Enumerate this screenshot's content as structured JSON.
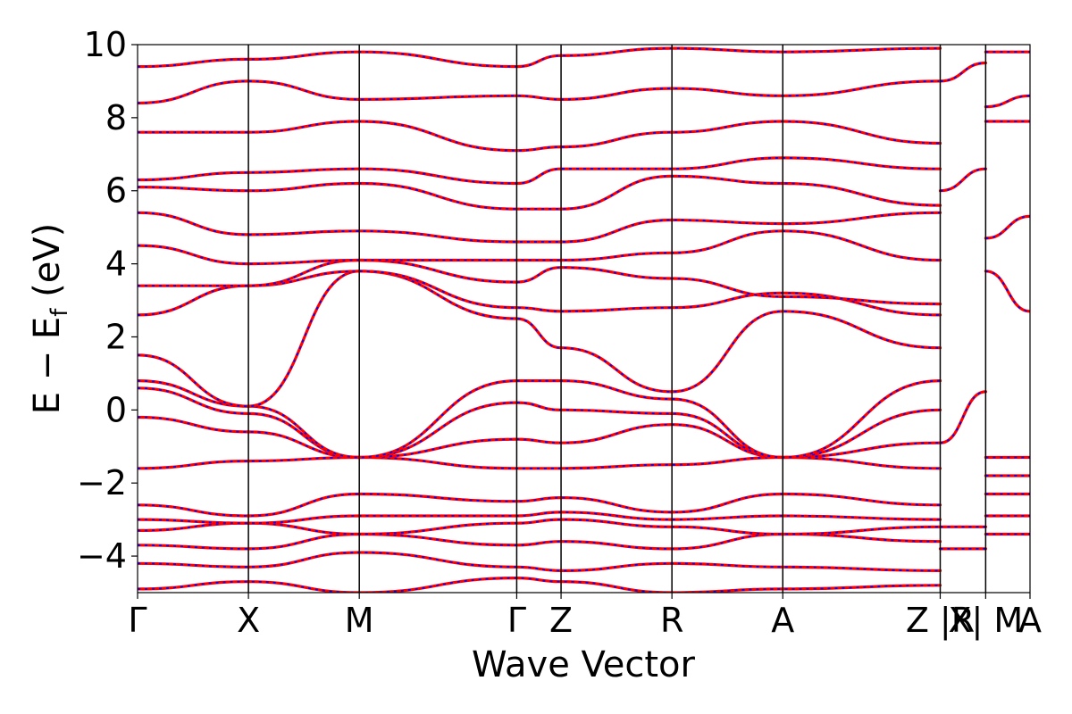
{
  "chart_data": {
    "type": "line",
    "title": "",
    "xlabel": "Wave Vector",
    "ylabel": "E − E",
    "ylabel_sub": "f",
    "ylabel_unit": " (eV)",
    "ylim": [
      -5,
      10
    ],
    "yticks": [
      {
        "value": -4,
        "label": "−4"
      },
      {
        "value": -2,
        "label": "−2"
      },
      {
        "value": 0,
        "label": "0"
      },
      {
        "value": 2,
        "label": "2"
      },
      {
        "value": 4,
        "label": "4"
      },
      {
        "value": 6,
        "label": "6"
      },
      {
        "value": 8,
        "label": "8"
      },
      {
        "value": 10,
        "label": "10"
      }
    ],
    "xlim": [
      0,
      8.05
    ],
    "kpoints": [
      {
        "label": "Γ",
        "x": 0.0
      },
      {
        "label": "X",
        "x": 1.0
      },
      {
        "label": "M",
        "x": 2.0
      },
      {
        "label": "Γ",
        "x": 3.42
      },
      {
        "label": "Z",
        "x": 3.82
      },
      {
        "label": "R",
        "x": 4.82
      },
      {
        "label": "A",
        "x": 5.82
      },
      {
        "label": "Z |R",
        "x": 7.24
      },
      {
        "label": "X| M",
        "x": 7.65
      },
      {
        "label": "A",
        "x": 8.05
      }
    ],
    "grid": false,
    "legend": "none",
    "series_colors": {
      "primary": "#ff0000",
      "secondary": "#0000ff"
    },
    "bands": [
      {
        "x": [
          0,
          1,
          2,
          3.42,
          3.82,
          4.82,
          5.82,
          7.24
        ],
        "y": [
          -4.9,
          -4.7,
          -5.0,
          -4.6,
          -4.7,
          -5.0,
          -4.9,
          -4.8
        ]
      },
      {
        "x": [
          0,
          1,
          2,
          3.42,
          3.82,
          4.82,
          5.82,
          7.24
        ],
        "y": [
          -4.2,
          -4.3,
          -3.9,
          -4.3,
          -4.4,
          -4.2,
          -4.3,
          -4.4
        ]
      },
      {
        "x": [
          0,
          1,
          2,
          3.42,
          3.82,
          4.82,
          5.82,
          7.24
        ],
        "y": [
          -3.7,
          -3.8,
          -3.4,
          -3.7,
          -3.6,
          -3.8,
          -3.4,
          -3.6
        ]
      },
      {
        "x": [
          0,
          1,
          2,
          3.42,
          3.82,
          4.82,
          5.82,
          7.24
        ],
        "y": [
          -3.3,
          -3.1,
          -3.4,
          -3.1,
          -3.0,
          -3.2,
          -3.4,
          -3.2
        ]
      },
      {
        "x": [
          0,
          1,
          2,
          3.42,
          3.82,
          4.82,
          5.82,
          7.24
        ],
        "y": [
          -3.0,
          -3.1,
          -2.9,
          -2.9,
          -2.8,
          -3.0,
          -2.9,
          -3.0
        ]
      },
      {
        "x": [
          0,
          1,
          2,
          3.42,
          3.82,
          4.82,
          5.82,
          7.24
        ],
        "y": [
          -2.6,
          -2.9,
          -2.3,
          -2.5,
          -2.4,
          -2.8,
          -2.3,
          -2.6
        ]
      },
      {
        "x": [
          0,
          1,
          2,
          3.42,
          3.82,
          4.82,
          5.82,
          7.24
        ],
        "y": [
          -1.6,
          -1.4,
          -1.3,
          -1.6,
          -1.6,
          -1.5,
          -1.3,
          -1.6
        ]
      },
      {
        "x": [
          0,
          1,
          2,
          3.42,
          3.82,
          4.82,
          5.82,
          7.24
        ],
        "y": [
          -0.2,
          -0.6,
          -1.3,
          -0.8,
          -0.9,
          -0.4,
          -1.3,
          -0.9
        ]
      },
      {
        "x": [
          0,
          1,
          2,
          3.42,
          3.82,
          4.82,
          5.82,
          7.24
        ],
        "y": [
          0.6,
          -0.1,
          -1.3,
          0.2,
          0.0,
          -0.1,
          -1.3,
          0.0
        ]
      },
      {
        "x": [
          0,
          1,
          2,
          3.42,
          3.82,
          4.82,
          5.82,
          7.24
        ],
        "y": [
          0.8,
          0.1,
          -1.3,
          0.8,
          0.8,
          0.3,
          -1.3,
          0.8
        ]
      },
      {
        "x": [
          0,
          1,
          2,
          3.42,
          3.82,
          4.82,
          5.82,
          7.24
        ],
        "y": [
          1.5,
          0.1,
          3.8,
          2.5,
          1.7,
          0.5,
          2.7,
          1.7
        ]
      },
      {
        "x": [
          0,
          1,
          2,
          3.42,
          3.82,
          4.82,
          5.82,
          7.24
        ],
        "y": [
          2.6,
          3.4,
          3.8,
          2.8,
          2.7,
          2.8,
          3.2,
          2.6
        ]
      },
      {
        "x": [
          0,
          1,
          2,
          3.42,
          3.82,
          4.82,
          5.82,
          7.24
        ],
        "y": [
          3.4,
          3.4,
          4.1,
          3.5,
          3.9,
          3.6,
          3.1,
          2.9
        ]
      },
      {
        "x": [
          0,
          1,
          2,
          3.42,
          3.82,
          4.82,
          5.82,
          7.24
        ],
        "y": [
          4.5,
          4.0,
          4.1,
          4.1,
          4.1,
          4.3,
          4.9,
          4.1
        ]
      },
      {
        "x": [
          0,
          1,
          2,
          3.42,
          3.82,
          4.82,
          5.82,
          7.24
        ],
        "y": [
          5.4,
          4.8,
          4.9,
          4.6,
          4.6,
          5.2,
          5.1,
          5.4
        ]
      },
      {
        "x": [
          0,
          1,
          2,
          3.42,
          3.82,
          4.82,
          5.82,
          7.24
        ],
        "y": [
          6.1,
          6.0,
          6.2,
          5.5,
          5.5,
          6.4,
          6.2,
          5.6
        ]
      },
      {
        "x": [
          0,
          1,
          2,
          3.42,
          3.82,
          4.82,
          5.82,
          7.24
        ],
        "y": [
          6.3,
          6.5,
          6.6,
          6.2,
          6.6,
          6.6,
          6.9,
          6.6
        ]
      },
      {
        "x": [
          0,
          1,
          2,
          3.42,
          3.82,
          4.82,
          5.82,
          7.24
        ],
        "y": [
          7.6,
          7.6,
          7.9,
          7.1,
          7.2,
          7.6,
          7.9,
          7.3
        ]
      },
      {
        "x": [
          0,
          1,
          2,
          3.42,
          3.82,
          4.82,
          5.82,
          7.24
        ],
        "y": [
          8.4,
          9.0,
          8.5,
          8.6,
          8.5,
          8.8,
          8.6,
          9.0
        ]
      },
      {
        "x": [
          0,
          1,
          2,
          3.42,
          3.82,
          4.82,
          5.82,
          7.24
        ],
        "y": [
          9.4,
          9.6,
          9.8,
          9.4,
          9.7,
          9.9,
          9.8,
          9.9
        ]
      },
      {
        "x": [
          7.24,
          7.65
        ],
        "y": [
          -3.2,
          -3.2
        ]
      },
      {
        "x": [
          7.24,
          7.65
        ],
        "y": [
          -3.8,
          -3.8
        ]
      },
      {
        "x": [
          7.24,
          7.65
        ],
        "y": [
          -0.9,
          0.5
        ]
      },
      {
        "x": [
          7.24,
          7.65
        ],
        "y": [
          6.0,
          6.6
        ]
      },
      {
        "x": [
          7.24,
          7.65
        ],
        "y": [
          9.0,
          9.5
        ]
      },
      {
        "x": [
          7.65,
          8.05
        ],
        "y": [
          -1.3,
          -1.3
        ]
      },
      {
        "x": [
          7.65,
          8.05
        ],
        "y": [
          -1.8,
          -1.8
        ]
      },
      {
        "x": [
          7.65,
          8.05
        ],
        "y": [
          -2.3,
          -2.3
        ]
      },
      {
        "x": [
          7.65,
          8.05
        ],
        "y": [
          -2.9,
          -2.9
        ]
      },
      {
        "x": [
          7.65,
          8.05
        ],
        "y": [
          -3.4,
          -3.4
        ]
      },
      {
        "x": [
          7.65,
          8.05
        ],
        "y": [
          3.8,
          2.7
        ]
      },
      {
        "x": [
          7.65,
          8.05
        ],
        "y": [
          4.7,
          5.3
        ]
      },
      {
        "x": [
          7.65,
          8.05
        ],
        "y": [
          7.9,
          7.9
        ]
      },
      {
        "x": [
          7.65,
          8.05
        ],
        "y": [
          8.3,
          8.6
        ]
      },
      {
        "x": [
          7.65,
          8.05
        ],
        "y": [
          9.8,
          9.8
        ]
      }
    ]
  }
}
